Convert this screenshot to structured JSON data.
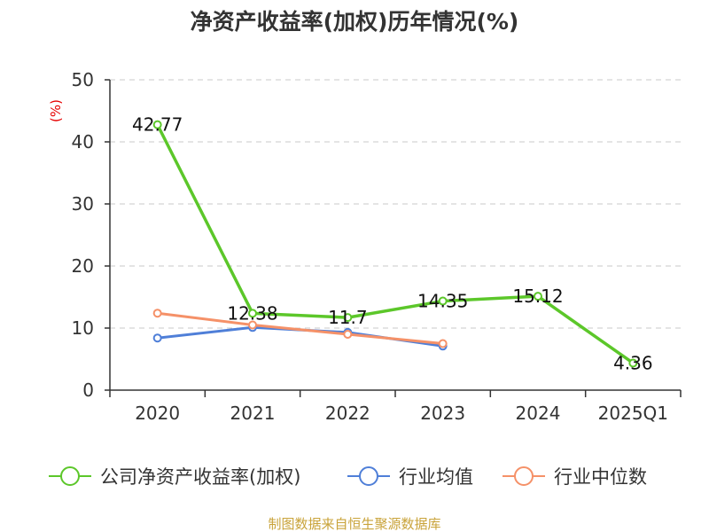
{
  "chart_data": {
    "type": "line",
    "title": "净资产收益率(加权)历年情况(%)",
    "ylabel": "(%)",
    "xlabel": "",
    "categories": [
      "2020",
      "2021",
      "2022",
      "2023",
      "2024",
      "2025Q1"
    ],
    "ylim": [
      0,
      50
    ],
    "yticks": [
      0,
      10,
      20,
      30,
      40,
      50
    ],
    "grid": true,
    "legend_position": "bottom",
    "series": [
      {
        "name": "公司净资产收益率(加权)",
        "color": "#5cc72a",
        "values": [
          42.77,
          12.38,
          11.7,
          14.35,
          15.12,
          4.36
        ],
        "labels": [
          "42.77",
          "12.38",
          "11.7",
          "14.35",
          "15.12",
          "4.36"
        ]
      },
      {
        "name": "行业均值",
        "color": "#4f7fd8",
        "values": [
          8.4,
          10.1,
          9.3,
          7.1,
          null,
          null
        ]
      },
      {
        "name": "行业中位数",
        "color": "#f59168",
        "values": [
          12.4,
          10.5,
          9.0,
          7.5,
          null,
          null
        ]
      }
    ]
  },
  "source": "制图数据来自恒生聚源数据库"
}
